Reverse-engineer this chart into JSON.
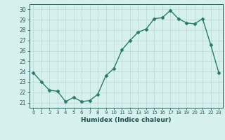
{
  "x": [
    0,
    1,
    2,
    3,
    4,
    5,
    6,
    7,
    8,
    9,
    10,
    11,
    12,
    13,
    14,
    15,
    16,
    17,
    18,
    19,
    20,
    21,
    22,
    23
  ],
  "y": [
    23.9,
    23.0,
    22.2,
    22.1,
    21.1,
    21.5,
    21.1,
    21.2,
    21.8,
    23.6,
    24.3,
    26.1,
    27.0,
    27.8,
    28.1,
    29.1,
    29.2,
    29.9,
    29.1,
    28.7,
    28.6,
    29.1,
    26.6,
    23.9
  ],
  "line_color": "#2a7a6a",
  "marker": "D",
  "marker_size": 2.5,
  "bg_color": "#d6f0ee",
  "grid_color": "#c0dede",
  "xlabel": "Humidex (Indice chaleur)",
  "ylim": [
    20.5,
    30.5
  ],
  "xlim": [
    -0.5,
    23.5
  ],
  "yticks": [
    21,
    22,
    23,
    24,
    25,
    26,
    27,
    28,
    29,
    30
  ],
  "xticks": [
    0,
    1,
    2,
    3,
    4,
    5,
    6,
    7,
    8,
    9,
    10,
    11,
    12,
    13,
    14,
    15,
    16,
    17,
    18,
    19,
    20,
    21,
    22,
    23
  ]
}
